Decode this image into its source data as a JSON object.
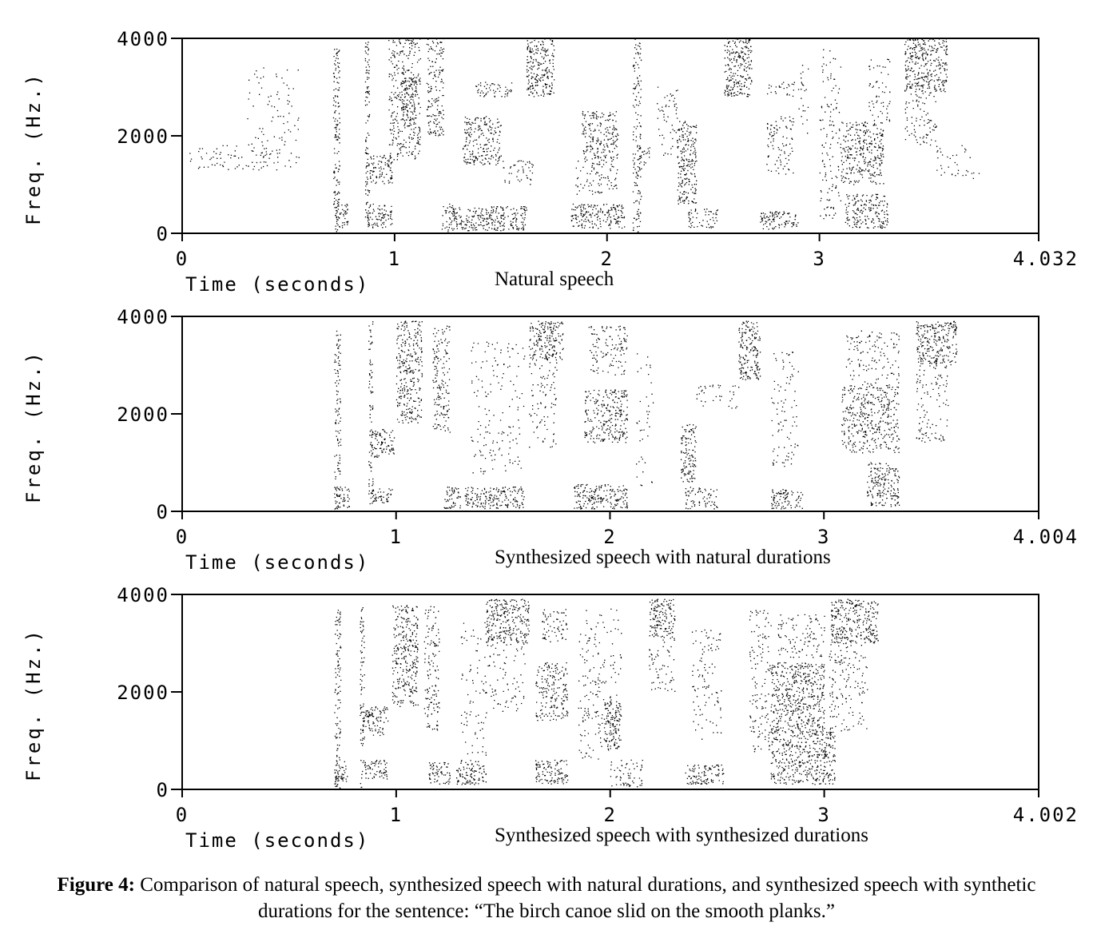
{
  "figure": {
    "caption_label": "Figure 4:",
    "caption_text": "Comparison of natural speech, synthesized speech with natural durations, and synthesized speech with synthetic durations for the sentence: “The birch canoe slid on the smooth planks.”"
  },
  "chart_data": [
    {
      "type": "heatmap",
      "subtitle": "Natural speech",
      "xlabel": "Time (seconds)",
      "ylabel": "Freq. (Hz.)",
      "x_ticks": [
        "0",
        "1",
        "2",
        "3"
      ],
      "x_end_label": "4.032",
      "y_ticks": [
        "0",
        "2000",
        "4000"
      ],
      "xlim": [
        0,
        4.032
      ],
      "ylim": [
        0,
        4000
      ],
      "blobs": [
        {
          "t": [
            0.03,
            0.55
          ],
          "f": [
            1300,
            1800
          ],
          "d": 0.25
        },
        {
          "t": [
            0.3,
            0.55
          ],
          "f": [
            1800,
            3400
          ],
          "d": 0.12
        },
        {
          "t": [
            0.71,
            0.74
          ],
          "f": [
            0,
            3800
          ],
          "d": 0.9
        },
        {
          "t": [
            0.72,
            0.78
          ],
          "f": [
            100,
            600
          ],
          "d": 0.9
        },
        {
          "t": [
            0.86,
            0.88
          ],
          "f": [
            0,
            4000
          ],
          "d": 0.9
        },
        {
          "t": [
            0.87,
            0.99
          ],
          "f": [
            100,
            600
          ],
          "d": 0.9
        },
        {
          "t": [
            0.88,
            0.99
          ],
          "f": [
            1000,
            1600
          ],
          "d": 0.9
        },
        {
          "t": [
            0.97,
            1.12
          ],
          "f": [
            1500,
            4000
          ],
          "d": 0.6
        },
        {
          "t": [
            1.03,
            1.1
          ],
          "f": [
            2200,
            3200
          ],
          "d": 0.9
        },
        {
          "t": [
            1.15,
            1.23
          ],
          "f": [
            2000,
            4000
          ],
          "d": 0.7
        },
        {
          "t": [
            1.22,
            1.28
          ],
          "f": [
            0,
            600
          ],
          "d": 0.9
        },
        {
          "t": [
            1.28,
            1.62
          ],
          "f": [
            50,
            550
          ],
          "d": 1.0
        },
        {
          "t": [
            1.32,
            1.5
          ],
          "f": [
            1400,
            2400
          ],
          "d": 0.8
        },
        {
          "t": [
            1.38,
            1.55
          ],
          "f": [
            2800,
            3100
          ],
          "d": 0.7
        },
        {
          "t": [
            1.5,
            1.65
          ],
          "f": [
            1000,
            1500
          ],
          "d": 0.4
        },
        {
          "t": [
            1.62,
            1.75
          ],
          "f": [
            2800,
            4000
          ],
          "d": 1.0
        },
        {
          "t": [
            1.83,
            2.08
          ],
          "f": [
            100,
            600
          ],
          "d": 1.0
        },
        {
          "t": [
            1.88,
            2.05
          ],
          "f": [
            1500,
            2500
          ],
          "d": 0.8
        },
        {
          "t": [
            1.85,
            2.05
          ],
          "f": [
            800,
            1500
          ],
          "d": 0.4
        },
        {
          "t": [
            2.12,
            2.16
          ],
          "f": [
            0,
            4000
          ],
          "d": 0.6
        },
        {
          "t": [
            2.14,
            2.2
          ],
          "f": [
            1400,
            1800
          ],
          "d": 0.8
        },
        {
          "t": [
            2.23,
            2.33
          ],
          "f": [
            1600,
            3000
          ],
          "d": 0.25
        },
        {
          "t": [
            2.33,
            2.42
          ],
          "f": [
            600,
            2300
          ],
          "d": 1.0
        },
        {
          "t": [
            2.38,
            2.52
          ],
          "f": [
            100,
            500
          ],
          "d": 0.7
        },
        {
          "t": [
            2.55,
            2.68
          ],
          "f": [
            2800,
            4000
          ],
          "d": 1.0
        },
        {
          "t": [
            2.72,
            2.9
          ],
          "f": [
            80,
            450
          ],
          "d": 1.0
        },
        {
          "t": [
            2.75,
            2.88
          ],
          "f": [
            1200,
            2400
          ],
          "d": 0.4
        },
        {
          "t": [
            2.75,
            2.9
          ],
          "f": [
            2800,
            3100
          ],
          "d": 0.4
        },
        {
          "t": [
            2.9,
            2.95
          ],
          "f": [
            2000,
            3500
          ],
          "d": 0.2
        },
        {
          "t": [
            3.1,
            3.3
          ],
          "f": [
            1000,
            2300
          ],
          "d": 0.8
        },
        {
          "t": [
            3.12,
            3.32
          ],
          "f": [
            100,
            800
          ],
          "d": 0.9
        },
        {
          "t": [
            3.0,
            3.1
          ],
          "f": [
            300,
            3800
          ],
          "d": 0.25
        },
        {
          "t": [
            3.23,
            3.33
          ],
          "f": [
            2300,
            3600
          ],
          "d": 0.3
        },
        {
          "t": [
            3.4,
            3.6
          ],
          "f": [
            2900,
            4000
          ],
          "d": 1.0
        },
        {
          "t": [
            3.4,
            3.55
          ],
          "f": [
            1800,
            2900
          ],
          "d": 0.35
        },
        {
          "t": [
            3.55,
            3.75
          ],
          "f": [
            1100,
            1800
          ],
          "d": 0.18
        }
      ]
    },
    {
      "type": "heatmap",
      "subtitle": "Synthesized speech with natural durations",
      "xlabel": "Time (seconds)",
      "ylabel": "Freq. (Hz.)",
      "x_ticks": [
        "0",
        "1",
        "2",
        "3"
      ],
      "x_end_label": "4.004",
      "y_ticks": [
        "0",
        "2000",
        "4000"
      ],
      "xlim": [
        0,
        4.004
      ],
      "ylim": [
        0,
        4000
      ],
      "blobs": [
        {
          "t": [
            0.71,
            0.74
          ],
          "f": [
            0,
            3700
          ],
          "d": 0.7
        },
        {
          "t": [
            0.72,
            0.78
          ],
          "f": [
            50,
            500
          ],
          "d": 1.0
        },
        {
          "t": [
            0.87,
            0.89
          ],
          "f": [
            0,
            3900
          ],
          "d": 0.7
        },
        {
          "t": [
            0.88,
            0.98
          ],
          "f": [
            150,
            500
          ],
          "d": 1.0
        },
        {
          "t": [
            0.88,
            0.99
          ],
          "f": [
            1100,
            1700
          ],
          "d": 0.9
        },
        {
          "t": [
            1.0,
            1.12
          ],
          "f": [
            1800,
            3900
          ],
          "d": 0.8
        },
        {
          "t": [
            1.17,
            1.25
          ],
          "f": [
            1600,
            3800
          ],
          "d": 0.6
        },
        {
          "t": [
            1.22,
            1.3
          ],
          "f": [
            50,
            500
          ],
          "d": 1.0
        },
        {
          "t": [
            1.32,
            1.6
          ],
          "f": [
            50,
            500
          ],
          "d": 1.0
        },
        {
          "t": [
            1.35,
            1.6
          ],
          "f": [
            700,
            3500
          ],
          "d": 0.15
        },
        {
          "t": [
            1.62,
            1.78
          ],
          "f": [
            3100,
            3900
          ],
          "d": 1.0
        },
        {
          "t": [
            1.62,
            1.75
          ],
          "f": [
            1300,
            3100
          ],
          "d": 0.25
        },
        {
          "t": [
            1.83,
            2.08
          ],
          "f": [
            50,
            550
          ],
          "d": 1.0
        },
        {
          "t": [
            1.88,
            2.08
          ],
          "f": [
            1400,
            2500
          ],
          "d": 0.8
        },
        {
          "t": [
            1.9,
            2.08
          ],
          "f": [
            2800,
            3800
          ],
          "d": 0.45
        },
        {
          "t": [
            2.12,
            2.2
          ],
          "f": [
            500,
            3300
          ],
          "d": 0.12
        },
        {
          "t": [
            2.33,
            2.4
          ],
          "f": [
            600,
            1800
          ],
          "d": 1.0
        },
        {
          "t": [
            2.35,
            2.5
          ],
          "f": [
            50,
            500
          ],
          "d": 0.7
        },
        {
          "t": [
            2.4,
            2.6
          ],
          "f": [
            2100,
            2600
          ],
          "d": 0.25
        },
        {
          "t": [
            2.6,
            2.7
          ],
          "f": [
            2700,
            3900
          ],
          "d": 1.0
        },
        {
          "t": [
            2.75,
            2.9
          ],
          "f": [
            50,
            450
          ],
          "d": 1.0
        },
        {
          "t": [
            2.75,
            2.88
          ],
          "f": [
            900,
            3300
          ],
          "d": 0.2
        },
        {
          "t": [
            3.08,
            3.35
          ],
          "f": [
            1200,
            2600
          ],
          "d": 0.7
        },
        {
          "t": [
            3.2,
            3.35
          ],
          "f": [
            100,
            1000
          ],
          "d": 0.9
        },
        {
          "t": [
            3.1,
            3.35
          ],
          "f": [
            2600,
            3700
          ],
          "d": 0.3
        },
        {
          "t": [
            3.43,
            3.62
          ],
          "f": [
            3000,
            3900
          ],
          "d": 1.0
        },
        {
          "t": [
            3.43,
            3.58
          ],
          "f": [
            1400,
            3000
          ],
          "d": 0.3
        }
      ]
    },
    {
      "type": "heatmap",
      "subtitle": "Synthesized speech with synthesized durations",
      "xlabel": "Time (seconds)",
      "ylabel": "Freq. (Hz.)",
      "x_ticks": [
        "0",
        "1",
        "2",
        "3"
      ],
      "x_end_label": "4.002",
      "y_ticks": [
        "0",
        "2000",
        "4000"
      ],
      "xlim": [
        0,
        4.002
      ],
      "ylim": [
        0,
        4000
      ],
      "blobs": [
        {
          "t": [
            0.71,
            0.74
          ],
          "f": [
            0,
            3700
          ],
          "d": 0.7
        },
        {
          "t": [
            0.71,
            0.77
          ],
          "f": [
            150,
            600
          ],
          "d": 1.0
        },
        {
          "t": [
            0.83,
            0.85
          ],
          "f": [
            0,
            3800
          ],
          "d": 0.7
        },
        {
          "t": [
            0.85,
            0.96
          ],
          "f": [
            200,
            600
          ],
          "d": 1.0
        },
        {
          "t": [
            0.84,
            0.96
          ],
          "f": [
            1100,
            1700
          ],
          "d": 0.9
        },
        {
          "t": [
            0.98,
            1.1
          ],
          "f": [
            1700,
            3800
          ],
          "d": 0.8
        },
        {
          "t": [
            1.13,
            1.2
          ],
          "f": [
            1200,
            3800
          ],
          "d": 0.5
        },
        {
          "t": [
            1.15,
            1.25
          ],
          "f": [
            100,
            550
          ],
          "d": 1.0
        },
        {
          "t": [
            1.28,
            1.42
          ],
          "f": [
            100,
            600
          ],
          "d": 1.0
        },
        {
          "t": [
            1.3,
            1.42
          ],
          "f": [
            700,
            3500
          ],
          "d": 0.15
        },
        {
          "t": [
            1.42,
            1.62
          ],
          "f": [
            3000,
            3900
          ],
          "d": 1.0
        },
        {
          "t": [
            1.4,
            1.6
          ],
          "f": [
            1600,
            3000
          ],
          "d": 0.2
        },
        {
          "t": [
            1.65,
            1.8
          ],
          "f": [
            100,
            600
          ],
          "d": 1.0
        },
        {
          "t": [
            1.65,
            1.8
          ],
          "f": [
            1400,
            2600
          ],
          "d": 0.7
        },
        {
          "t": [
            1.68,
            1.8
          ],
          "f": [
            3000,
            3700
          ],
          "d": 0.5
        },
        {
          "t": [
            1.85,
            2.05
          ],
          "f": [
            600,
            3700
          ],
          "d": 0.2
        },
        {
          "t": [
            1.97,
            2.05
          ],
          "f": [
            800,
            1800
          ],
          "d": 1.0
        },
        {
          "t": [
            2.0,
            2.15
          ],
          "f": [
            50,
            600
          ],
          "d": 0.5
        },
        {
          "t": [
            2.18,
            2.3
          ],
          "f": [
            3100,
            3900
          ],
          "d": 1.0
        },
        {
          "t": [
            2.18,
            2.3
          ],
          "f": [
            2000,
            3100
          ],
          "d": 0.3
        },
        {
          "t": [
            2.35,
            2.53
          ],
          "f": [
            100,
            500
          ],
          "d": 1.0
        },
        {
          "t": [
            2.38,
            2.52
          ],
          "f": [
            1000,
            3400
          ],
          "d": 0.2
        },
        {
          "t": [
            2.65,
            2.75
          ],
          "f": [
            700,
            3700
          ],
          "d": 0.3
        },
        {
          "t": [
            2.75,
            3.0
          ],
          "f": [
            1200,
            2600
          ],
          "d": 0.9
        },
        {
          "t": [
            2.75,
            3.05
          ],
          "f": [
            100,
            1200
          ],
          "d": 0.9
        },
        {
          "t": [
            2.78,
            3.0
          ],
          "f": [
            2700,
            3600
          ],
          "d": 0.35
        },
        {
          "t": [
            3.03,
            3.25
          ],
          "f": [
            3000,
            3900
          ],
          "d": 1.0
        },
        {
          "t": [
            3.02,
            3.2
          ],
          "f": [
            1200,
            3000
          ],
          "d": 0.3
        }
      ]
    }
  ]
}
